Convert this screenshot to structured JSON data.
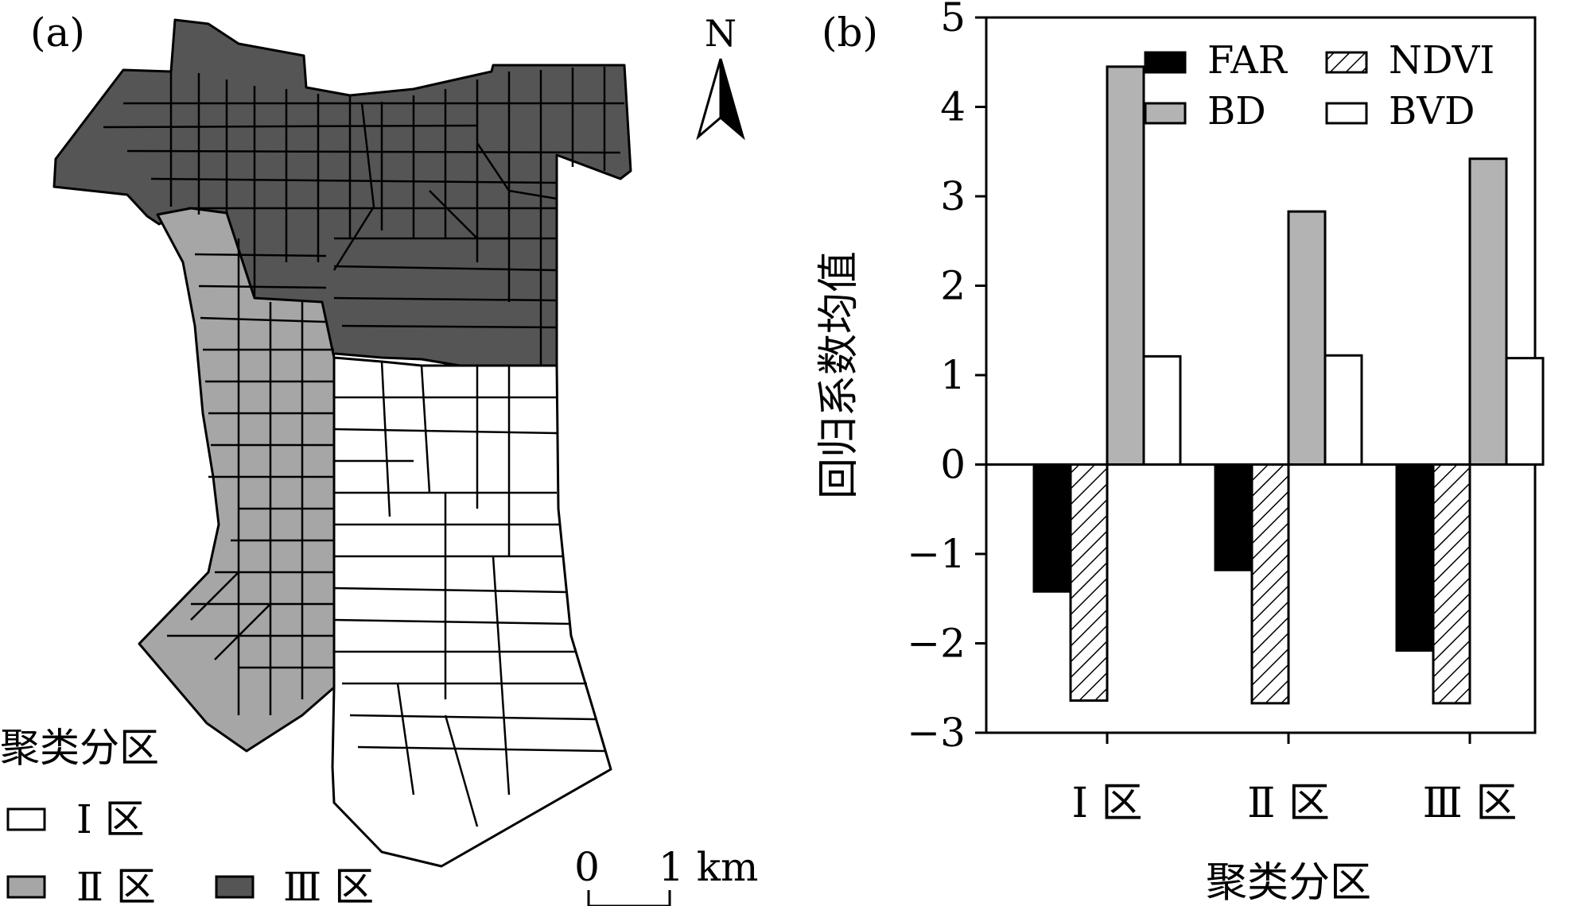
{
  "panel_a": {
    "label": "(a)",
    "north_label": "N",
    "legend_title": "聚类分区",
    "legend": [
      {
        "label": "Ⅰ 区",
        "color": "#ffffff"
      },
      {
        "label": "Ⅱ 区",
        "color": "#a6a6a6"
      },
      {
        "label": "Ⅲ 区",
        "color": "#555555"
      }
    ],
    "scale_start": "0",
    "scale_end": "1 km"
  },
  "panel_b": {
    "label": "(b)"
  },
  "chart_data": {
    "type": "bar",
    "title": "",
    "xlabel": "聚类分区",
    "ylabel": "回归系数均值",
    "categories": [
      "Ⅰ 区",
      "Ⅱ 区",
      "Ⅲ 区"
    ],
    "ylim": [
      -3,
      5
    ],
    "yticks": [
      -3,
      -2,
      -1,
      0,
      1,
      2,
      3,
      4,
      5
    ],
    "ytick_labels": [
      "−3",
      "−2",
      "−1",
      "0",
      "1",
      "2",
      "3",
      "4",
      "5"
    ],
    "series": [
      {
        "name": "FAR",
        "fill": "black",
        "values": [
          -1.42,
          -1.18,
          -2.08
        ]
      },
      {
        "name": "NDVI",
        "fill": "hatched",
        "values": [
          -2.64,
          -2.67,
          -2.67
        ]
      },
      {
        "name": "BD",
        "fill": "gray",
        "values": [
          4.45,
          2.83,
          3.42
        ]
      },
      {
        "name": "BVD",
        "fill": "white",
        "values": [
          1.21,
          1.22,
          1.19
        ]
      }
    ],
    "legend_position": "top-right"
  }
}
